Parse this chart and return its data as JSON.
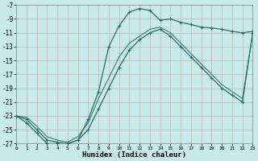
{
  "xlabel": "Humidex (Indice chaleur)",
  "bg_color": "#c8eaea",
  "grid_color_major": "#c0b8b8",
  "grid_color_minor": "#d8d0d0",
  "line_color": "#2a6e6a",
  "xlim": [
    0,
    23
  ],
  "ylim": [
    -27,
    -7
  ],
  "yticks": [
    -7,
    -9,
    -11,
    -13,
    -15,
    -17,
    -19,
    -21,
    -23,
    -25,
    -27
  ],
  "xticks": [
    0,
    1,
    2,
    3,
    4,
    5,
    6,
    7,
    8,
    9,
    10,
    11,
    12,
    13,
    14,
    15,
    16,
    17,
    18,
    19,
    20,
    21,
    22,
    23
  ],
  "curve1_x": [
    0,
    1,
    2,
    3,
    4,
    5,
    6,
    7,
    8,
    9,
    10,
    11,
    12,
    13,
    14,
    15,
    16,
    17,
    18,
    19,
    20,
    21,
    22,
    23
  ],
  "curve1_y": [
    -23,
    -24,
    -25.5,
    -27,
    -27,
    -27,
    -26.5,
    -23.5,
    -19.5,
    -13,
    -10,
    -8,
    -7.5,
    -7.8,
    -9.2,
    -9.0,
    -9.5,
    -9.8,
    -10.2,
    -10.3,
    -10.5,
    -10.8,
    -11,
    -10.8
  ],
  "curve2_x": [
    0,
    1,
    2,
    3,
    4,
    5,
    6,
    7,
    8,
    9,
    10,
    11,
    12,
    13,
    14,
    15,
    16,
    17,
    18,
    19,
    20,
    21,
    22,
    23
  ],
  "curve2_y": [
    -23,
    -23.5,
    -25,
    -26.5,
    -26.8,
    -27,
    -26.5,
    -25,
    -22,
    -19,
    -16,
    -13.5,
    -12,
    -11,
    -10.5,
    -11.5,
    -13,
    -14.5,
    -16,
    -17.5,
    -19,
    -20,
    -21,
    -11
  ],
  "curve3_x": [
    0,
    1,
    2,
    3,
    4,
    5,
    6,
    7,
    8,
    9,
    10,
    11,
    12,
    13,
    14,
    15,
    16,
    17,
    18,
    19,
    20,
    21,
    22,
    23
  ],
  "curve3_y": [
    -23,
    -23.2,
    -24.5,
    -26,
    -26.5,
    -26.8,
    -26.0,
    -24,
    -20.5,
    -17.5,
    -14.5,
    -12.5,
    -11.5,
    -10.5,
    -10.2,
    -11.0,
    -12.5,
    -14.0,
    -15.5,
    -17.0,
    -18.5,
    -19.5,
    -20.5,
    -11
  ]
}
